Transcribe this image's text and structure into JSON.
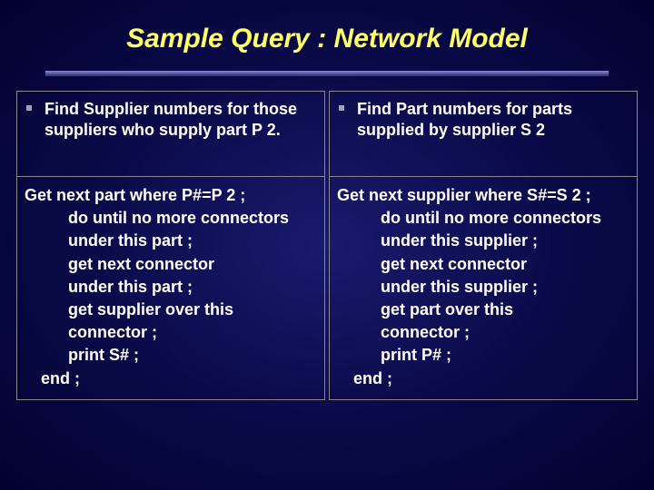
{
  "slide": {
    "title": "Sample Query : Network Model",
    "title_color": "#ffff66",
    "title_fontsize": 30,
    "text_color": "#ffffff",
    "body_fontsize": 18,
    "background_gradient": {
      "inner": "#1a1a6e",
      "mid": "#0a0a4a",
      "outer": "#020230"
    },
    "divider_colors": {
      "top": "#7a7ac0",
      "mid": "#5a5aa0",
      "bottom": "#3a3a80"
    }
  },
  "left": {
    "question": "Find Supplier numbers for those suppliers who supply part P 2.",
    "code": [
      {
        "t": "Get next part where P#=P 2 ;",
        "i": 0
      },
      {
        "t": "do until no more connectors",
        "i": 1
      },
      {
        "t": "under this part ;",
        "i": 1
      },
      {
        "t": "get next connector",
        "i": 1
      },
      {
        "t": "under this part ;",
        "i": 1
      },
      {
        "t": "get supplier over this",
        "i": 1
      },
      {
        "t": "connector ;",
        "i": 1
      },
      {
        "t": "print S# ;",
        "i": 1
      },
      {
        "t": "end ;",
        "i": 2
      }
    ]
  },
  "right": {
    "question": "Find Part numbers for parts supplied by supplier S 2",
    "code": [
      {
        "t": "Get next supplier where S#=S 2 ;",
        "i": 0
      },
      {
        "t": "do until no more connectors",
        "i": 1
      },
      {
        "t": "under this supplier ;",
        "i": 1
      },
      {
        "t": "get next connector",
        "i": 1
      },
      {
        "t": "under this supplier ;",
        "i": 1
      },
      {
        "t": "get part over this",
        "i": 1
      },
      {
        "t": "connector ;",
        "i": 1
      },
      {
        "t": "print P# ;",
        "i": 1
      },
      {
        "t": "end ;",
        "i": 2
      }
    ]
  }
}
